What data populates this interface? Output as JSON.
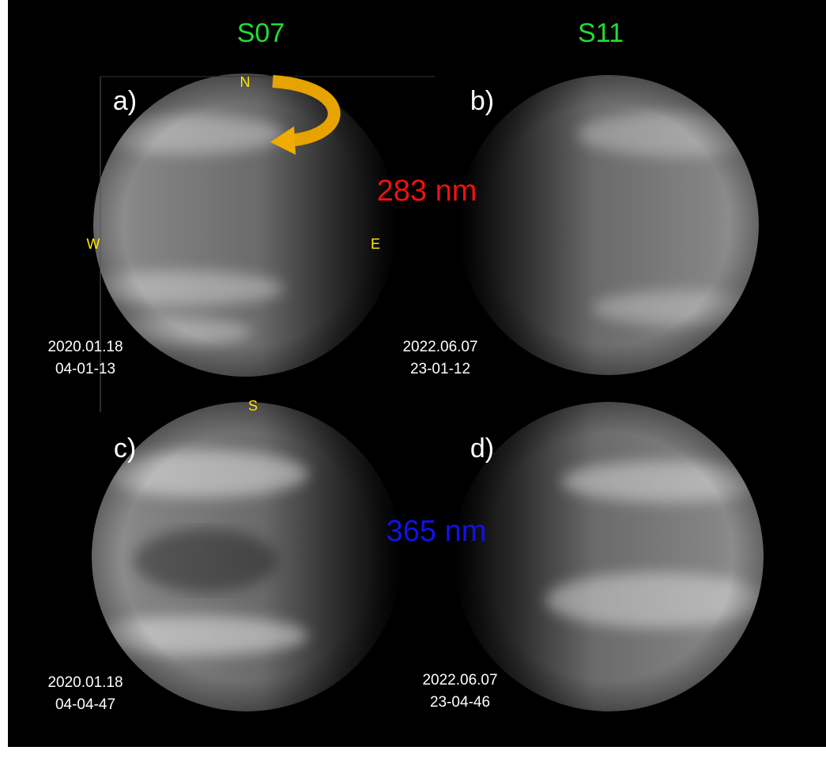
{
  "columns": [
    "S07",
    "S11"
  ],
  "wavelengths": [
    "283 nm",
    "365 nm"
  ],
  "compass": {
    "north": "N",
    "west": "W",
    "east": "E",
    "south": "S"
  },
  "panels": [
    {
      "label": "a)",
      "date": "2020.01.18",
      "time": "04-01-13"
    },
    {
      "label": "b)",
      "date": "2022.06.07",
      "time": "23-01-12"
    },
    {
      "label": "c)",
      "date": "2020.01.18",
      "time": "04-04-47"
    },
    {
      "label": "d)",
      "date": "2022.06.07",
      "time": "23-04-46"
    }
  ]
}
